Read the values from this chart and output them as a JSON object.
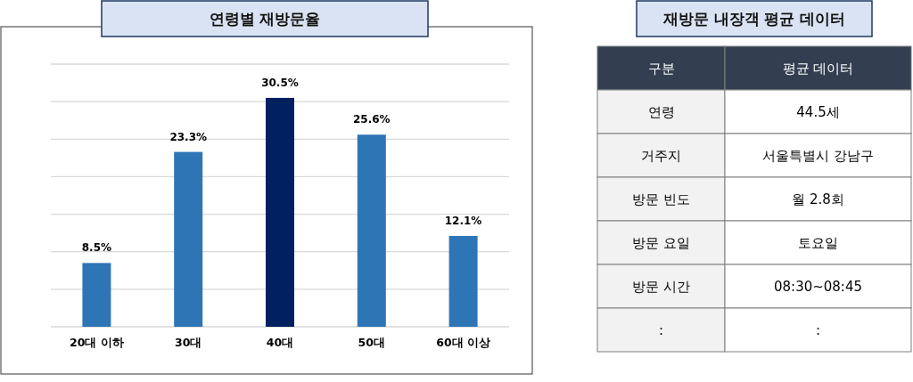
{
  "chart_data": [
    {
      "type": "bar",
      "title": "연령별 재방문율",
      "categories": [
        "20대 이하",
        "30대",
        "40대",
        "50대",
        "60대 이상"
      ],
      "values": [
        8.5,
        23.3,
        30.5,
        25.6,
        12.1
      ],
      "value_labels": [
        "8.5%",
        "23.3%",
        "30.5%",
        "25.6%",
        "12.1%"
      ],
      "colors": [
        "#2e75b6",
        "#2e75b6",
        "#002060",
        "#2e75b6",
        "#2e75b6"
      ],
      "ylim": [
        0,
        35
      ],
      "yticks": [
        {
          "value": 0,
          "label": null
        },
        {
          "value": 5,
          "label": null
        },
        {
          "value": 10,
          "label": null
        },
        {
          "value": 15,
          "label": null
        },
        {
          "value": 20,
          "label": null
        },
        {
          "value": 25,
          "label": null
        },
        {
          "value": 30,
          "label": null
        },
        {
          "value": 35,
          "label": null
        }
      ],
      "grid": "y",
      "tick_labels": "x"
    },
    {
      "type": "other",
      "title": "재방문 내장객 평균 데이터",
      "annotations": [
        "구분",
        "평균 데이터",
        "연령",
        "44.5세",
        "거주지",
        "서울특별시 강남구",
        "방문 빈도",
        "월 2.8회",
        "방문 요일",
        "토요일",
        "방문 시간",
        "08:30~08:45",
        ":",
        ":"
      ]
    }
  ]
}
